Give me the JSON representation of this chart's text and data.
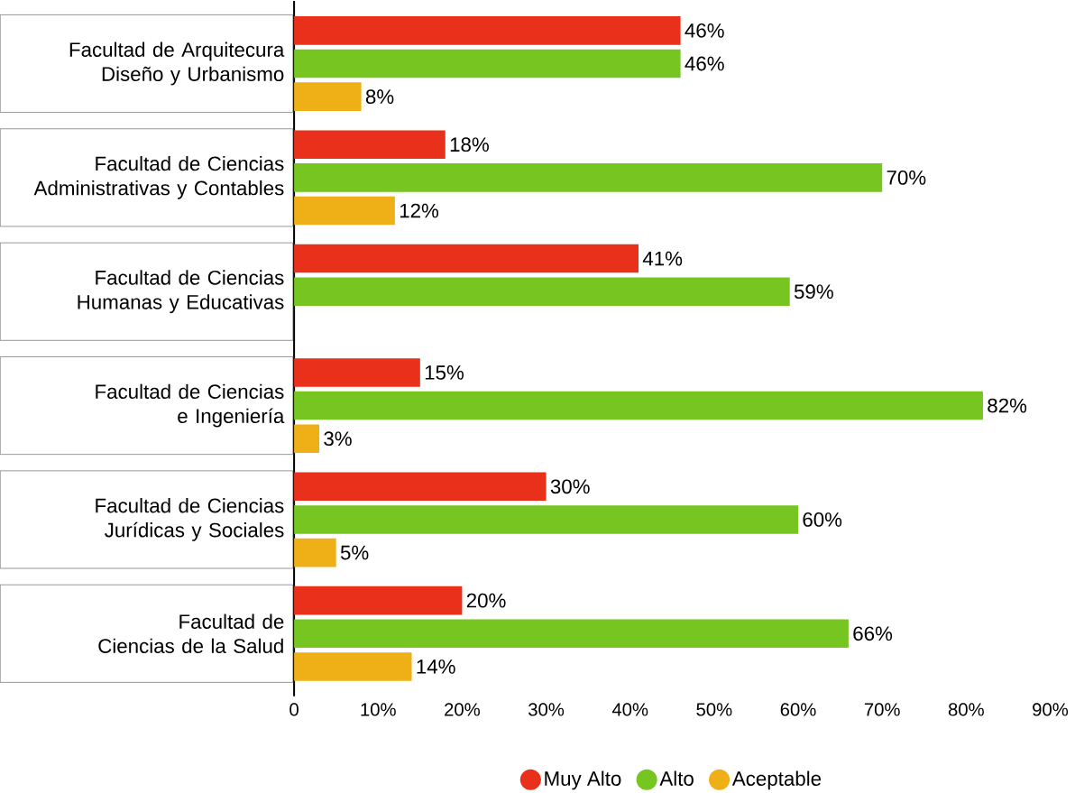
{
  "chart_data": {
    "type": "bar",
    "orientation": "horizontal",
    "categories": [
      "Facultad de Arquitecura Diseño y Urbanismo",
      "Facultad de Ciencias Administrativas y Contables",
      "Facultad de Ciencias Humanas y Educativas",
      "Facultad de Ciencias e Ingeniería",
      "Facultad de Ciencias Jurídicas y Sociales",
      "Facultad de Ciencias de la Salud"
    ],
    "series": [
      {
        "name": "Muy Alto",
        "color": "#e8301a",
        "values": [
          46,
          18,
          41,
          15,
          30,
          20
        ],
        "value_labels": [
          "46%",
          "18%",
          "41%",
          "15%",
          "30%",
          "20%"
        ]
      },
      {
        "name": "Alto",
        "color": "#76c520",
        "values": [
          46,
          70,
          59,
          82,
          60,
          66
        ],
        "value_labels": [
          "46%",
          "70%",
          "59%",
          "82%",
          "60%",
          "66%"
        ]
      },
      {
        "name": "Aceptable",
        "color": "#eeb016",
        "values": [
          8,
          12,
          null,
          3,
          5,
          14
        ],
        "value_labels": [
          "8%",
          "12%",
          null,
          "3%",
          "5%",
          "14%"
        ]
      }
    ],
    "xlim": [
      0,
      90
    ],
    "xticks": [
      {
        "value": 0,
        "label": "0"
      },
      {
        "value": 10,
        "label": "10%"
      },
      {
        "value": 20,
        "label": "20%"
      },
      {
        "value": 30,
        "label": "30%"
      },
      {
        "value": 40,
        "label": "40%"
      },
      {
        "value": 50,
        "label": "50%"
      },
      {
        "value": 60,
        "label": "60%"
      },
      {
        "value": 70,
        "label": "70%"
      },
      {
        "value": 80,
        "label": "80%"
      },
      {
        "value": 90,
        "label": "90%"
      }
    ],
    "legend": "bottom",
    "grid": false
  }
}
